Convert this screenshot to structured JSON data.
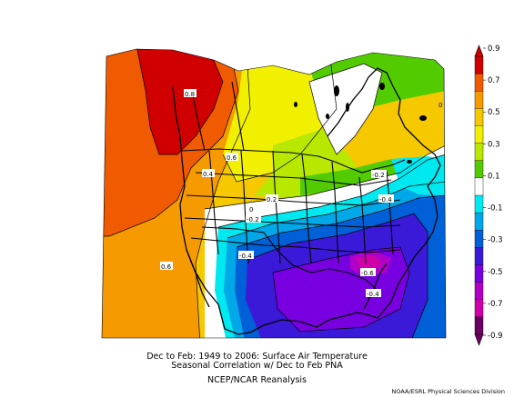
{
  "caption": {
    "line1": "Dec to Feb: 1949 to 2006: Surface Air Temperature",
    "line2": "Seasonal Correlation w/ Dec to Feb PNA",
    "line3": "NCEP/NCAR Reanalysis"
  },
  "credit": "NOAA/ESRL Physical Sciences Division",
  "colorbar": {
    "labels": [
      "0.9",
      "0.7",
      "0.5",
      "0.3",
      "0.1",
      "-0.1",
      "-0.3",
      "-0.5",
      "-0.7",
      "-0.9"
    ],
    "colors": [
      "#d10000",
      "#f05a00",
      "#f59a00",
      "#f5c800",
      "#f0f000",
      "#b8e800",
      "#52cc00",
      "#ffffff",
      "#00e8f0",
      "#00a8e8",
      "#0060d8",
      "#3a1ad8",
      "#7800e0",
      "#b000c8",
      "#d000a8",
      "#6a0060"
    ]
  },
  "contour_labels": [
    {
      "text": "0.8",
      "value": 0.8
    },
    {
      "text": "0.6",
      "value": 0.6
    },
    {
      "text": "0.4",
      "value": 0.4
    },
    {
      "text": "0.2",
      "value": 0.2
    },
    {
      "text": "0",
      "value": 0.0
    },
    {
      "text": "-0.2",
      "value": -0.2
    },
    {
      "text": "-0.2",
      "value": -0.2
    },
    {
      "text": "-0.4",
      "value": -0.4
    },
    {
      "text": "-0.4",
      "value": -0.4
    },
    {
      "text": "-0.6",
      "value": -0.6
    },
    {
      "text": "-0.4",
      "value": -0.4
    },
    {
      "text": "0.6",
      "value": 0.6
    },
    {
      "text": "0",
      "value": 0.0
    }
  ]
}
